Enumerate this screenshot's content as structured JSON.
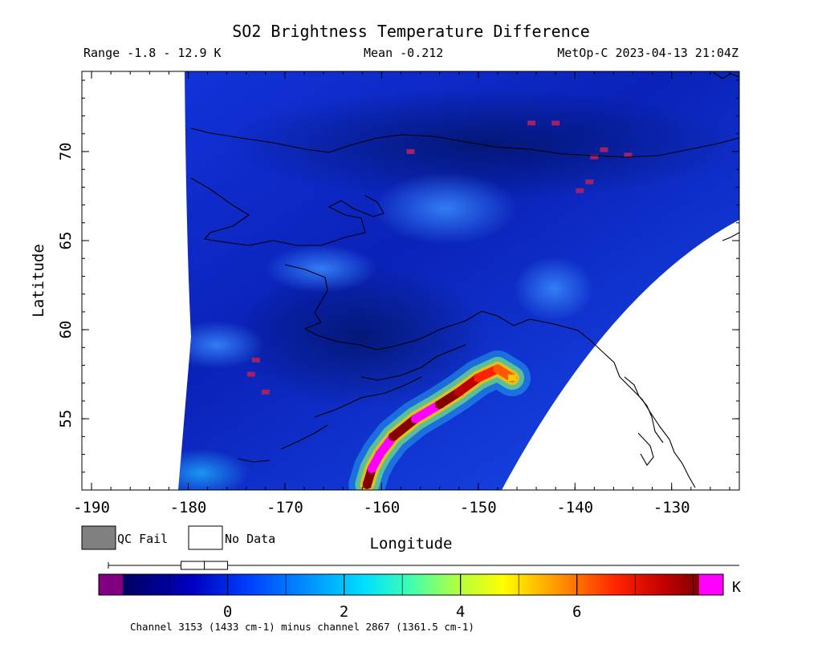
{
  "chart_data": {
    "type": "heatmap",
    "title": "SO2 Brightness Temperature Difference",
    "range_text": "Range -1.8 - 12.9 K",
    "mean_text": "Mean -0.212",
    "satellite_text": "MetOp-C 2023-04-13 21:04Z",
    "xlabel": "Longitude",
    "ylabel": "Latitude",
    "xlim": [
      -191,
      -123
    ],
    "ylim": [
      51,
      74.5
    ],
    "x_ticks": [
      {
        "value": -190,
        "label": "-190"
      },
      {
        "value": -180,
        "label": "-180"
      },
      {
        "value": -170,
        "label": "-170"
      },
      {
        "value": -160,
        "label": "-160"
      },
      {
        "value": -150,
        "label": "-150"
      },
      {
        "value": -140,
        "label": "-140"
      },
      {
        "value": -130,
        "label": "-130"
      }
    ],
    "y_ticks": [
      {
        "value": 55,
        "label": "55"
      },
      {
        "value": 60,
        "label": "60"
      },
      {
        "value": 65,
        "label": "65"
      },
      {
        "value": 70,
        "label": "70"
      }
    ],
    "legend": [
      {
        "label": "QC Fail",
        "color": "#808080"
      },
      {
        "label": "No Data",
        "color": "#ffffff"
      }
    ],
    "colorbar": {
      "min": -1.8,
      "max": 8.1,
      "unit": "K",
      "under_color": "#800080",
      "over_color": "#ff00ff",
      "ticks": [
        {
          "value": 0,
          "label": "0"
        },
        {
          "value": 2,
          "label": "2"
        },
        {
          "value": 4,
          "label": "4"
        },
        {
          "value": 6,
          "label": "6"
        }
      ]
    },
    "channel_note": "Channel 3153 (1433 cm-1) minus channel 2867 (1361.5 cm-1)",
    "box_plot": {
      "whisker_min": -1.8,
      "q1": -0.8,
      "median": -0.4,
      "q3": 0.0,
      "whisker_max": 8.1
    },
    "so2_plume": [
      {
        "lon": -161.5,
        "lat": 51.3,
        "value": 8.0
      },
      {
        "lon": -161.0,
        "lat": 52.2,
        "value": 9.0
      },
      {
        "lon": -160.2,
        "lat": 53.0,
        "value": 8.5
      },
      {
        "lon": -158.8,
        "lat": 54.0,
        "value": 8.0
      },
      {
        "lon": -156.5,
        "lat": 55.0,
        "value": 8.5
      },
      {
        "lon": -154.0,
        "lat": 55.8,
        "value": 8.0
      },
      {
        "lon": -152.0,
        "lat": 56.5,
        "value": 7.0
      },
      {
        "lon": -150.0,
        "lat": 57.3,
        "value": 6.0
      },
      {
        "lon": -148.0,
        "lat": 57.8,
        "value": 5.5
      },
      {
        "lon": -146.5,
        "lat": 57.3,
        "value": 4.5
      }
    ],
    "qc_fail_points": [
      {
        "lon": -157.0,
        "lat": 70.0
      },
      {
        "lon": -144.5,
        "lat": 71.6
      },
      {
        "lon": -142.0,
        "lat": 71.6
      },
      {
        "lon": -137.0,
        "lat": 70.1
      },
      {
        "lon": -138.0,
        "lat": 69.7
      },
      {
        "lon": -134.5,
        "lat": 69.8
      },
      {
        "lon": -138.5,
        "lat": 68.3
      },
      {
        "lon": -139.5,
        "lat": 67.8
      },
      {
        "lon": -173.0,
        "lat": 58.3
      },
      {
        "lon": -173.5,
        "lat": 57.5
      },
      {
        "lon": -172.0,
        "lat": 56.5
      }
    ]
  }
}
